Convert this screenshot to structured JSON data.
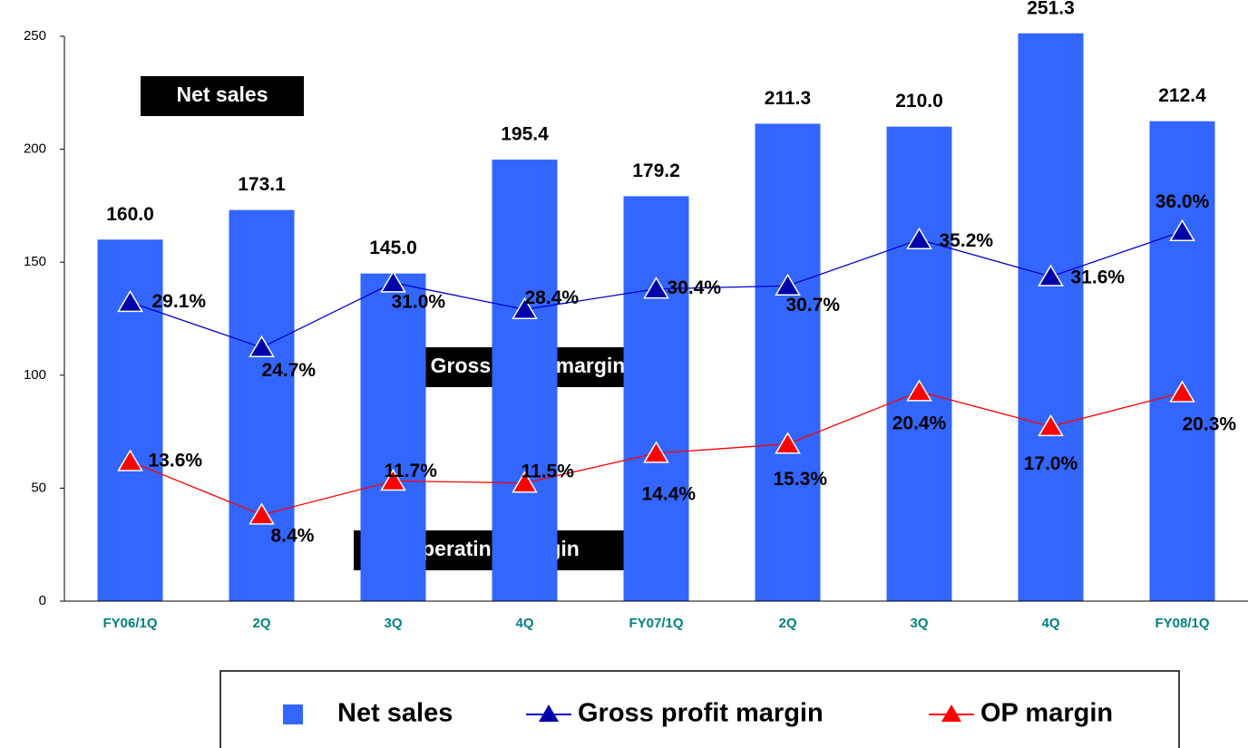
{
  "chart_data": {
    "type": "bar",
    "categories": [
      "FY06/1Q",
      "2Q",
      "3Q",
      "4Q",
      "FY07/1Q",
      "2Q",
      "3Q",
      "4Q",
      "FY08/1Q"
    ],
    "ylim": [
      0,
      250
    ],
    "yticks": [
      0,
      50,
      100,
      150,
      200,
      250
    ],
    "y2lim": [
      0,
      55
    ],
    "series": [
      {
        "name": "Net sales",
        "type": "bar",
        "color": "#3366ff",
        "values": [
          160.0,
          173.1,
          145.0,
          195.4,
          179.2,
          211.3,
          210.0,
          251.3,
          212.4
        ],
        "value_labels": [
          "160.0",
          "173.1",
          "145.0",
          "195.4",
          "179.2",
          "211.3",
          "210.0",
          "251.3",
          "212.4"
        ]
      },
      {
        "name": "Gross profit margin",
        "type": "line",
        "axis": "y2",
        "color": "#0000cc",
        "values": [
          29.1,
          24.7,
          31.0,
          28.4,
          30.4,
          30.7,
          35.2,
          31.6,
          36.0
        ],
        "value_labels": [
          "29.1%",
          "24.7%",
          "31.0%",
          "28.4%",
          "30.4%",
          "30.7%",
          "35.2%",
          "31.6%",
          "36.0%"
        ]
      },
      {
        "name": "OP margin",
        "type": "line",
        "axis": "y2",
        "color": "#ff0000",
        "values": [
          13.6,
          8.4,
          11.7,
          11.5,
          14.4,
          15.3,
          20.4,
          17.0,
          20.3
        ],
        "value_labels": [
          "13.6%",
          "8.4%",
          "11.7%",
          "11.5%",
          "14.4%",
          "15.3%",
          "20.4%",
          "17.0%",
          "20.3%"
        ]
      }
    ],
    "annotations": [
      "Net sales",
      "Gross profit margin",
      "Operating margin"
    ]
  }
}
